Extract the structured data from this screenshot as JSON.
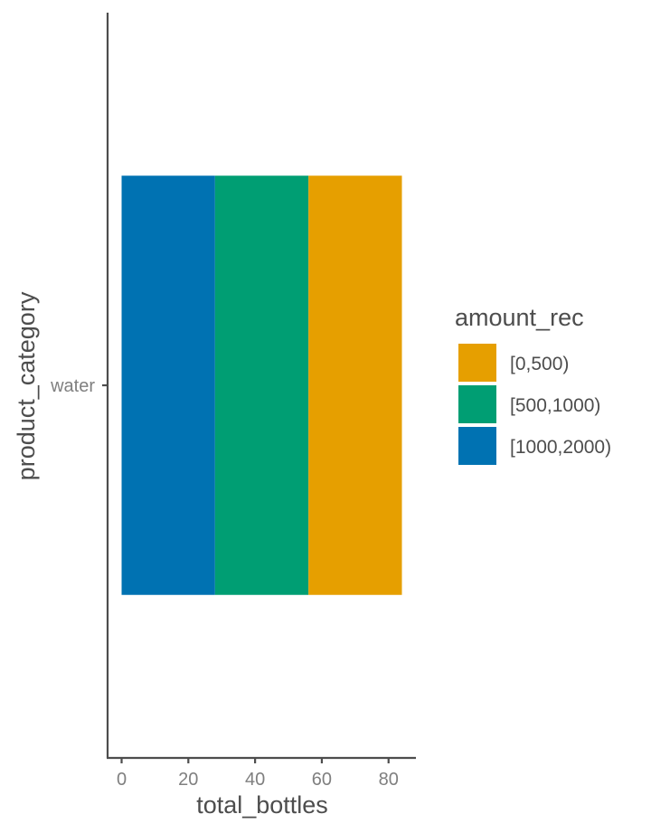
{
  "chart_data": {
    "type": "bar",
    "orientation": "horizontal",
    "stacked": true,
    "categories": [
      "water"
    ],
    "series": [
      {
        "name": "[0,500)",
        "values": [
          28
        ],
        "color": "#E69F00"
      },
      {
        "name": "[500,1000)",
        "values": [
          28
        ],
        "color": "#009E73"
      },
      {
        "name": "[1000,2000)",
        "values": [
          28
        ],
        "color": "#0072B2"
      }
    ],
    "stack_order_from_zero": [
      "[1000,2000)",
      "[500,1000)",
      "[0,500)"
    ],
    "xlabel": "total_bottles",
    "ylabel": "product_category",
    "xlim": [
      -4.2,
      88.2
    ],
    "xticks": [
      0,
      20,
      40,
      60,
      80
    ],
    "xtick_labels": [
      "0",
      "20",
      "40",
      "60",
      "80"
    ],
    "legend": {
      "title": "amount_rec",
      "position": "right"
    },
    "grid": false
  }
}
